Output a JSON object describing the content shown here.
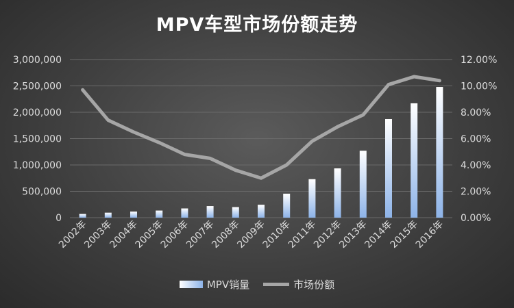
{
  "chart_data": {
    "type": "bar",
    "title": "MPV车型市场份额走势",
    "categories": [
      "2002年",
      "2003年",
      "2004年",
      "2005年",
      "2006年",
      "2007年",
      "2008年",
      "2009年",
      "2010年",
      "2011年",
      "2012年",
      "2013年",
      "2014年",
      "2015年",
      "2016年"
    ],
    "series": [
      {
        "name": "MPV销量",
        "type": "bar",
        "axis": "left",
        "values": [
          70000,
          95000,
          115000,
          135000,
          175000,
          220000,
          200000,
          245000,
          455000,
          730000,
          935000,
          1270000,
          1870000,
          2170000,
          2480000
        ]
      },
      {
        "name": "市场份额",
        "type": "line",
        "axis": "right",
        "values": [
          9.7,
          7.4,
          6.5,
          5.7,
          4.8,
          4.5,
          3.6,
          3.0,
          4.0,
          5.8,
          6.9,
          7.8,
          10.1,
          10.7,
          10.4
        ]
      }
    ],
    "y_left": {
      "ylim": [
        0,
        3000000
      ],
      "ticks": [
        "0",
        "500,000",
        "1,000,000",
        "1,500,000",
        "2,000,000",
        "2,500,000",
        "3,000,000"
      ]
    },
    "y_right": {
      "ylim": [
        0,
        12
      ],
      "ticks": [
        "0.00%",
        "2.00%",
        "4.00%",
        "6.00%",
        "8.00%",
        "10.00%",
        "12.00%"
      ]
    },
    "grid": true,
    "legend_position": "bottom",
    "colors": {
      "bar_top": "#ffffff",
      "bar_bottom": "#8db3e8",
      "line": "#a6a6a6",
      "grid": "#6a6a6a",
      "text": "#dcdcdc"
    }
  },
  "legend": {
    "bar_label": "MPV销量",
    "line_label": "市场份额"
  }
}
